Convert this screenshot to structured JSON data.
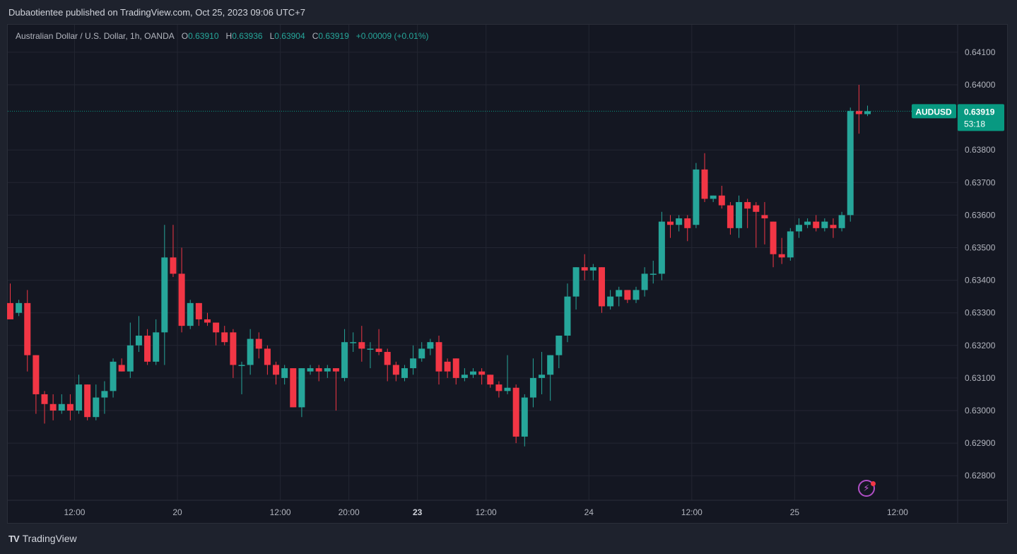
{
  "header": {
    "publisher_line": "Dubaotientee published on TradingView.com, Oct 25, 2023 09:06 UTC+7"
  },
  "legend": {
    "symbol_desc": "Australian Dollar / U.S. Dollar, 1h, OANDA",
    "o_label": "O",
    "o_value": "0.63910",
    "h_label": "H",
    "h_value": "0.63936",
    "l_label": "L",
    "l_value": "0.63904",
    "c_label": "C",
    "c_value": "0.63919",
    "change": "+0.00009 (+0.01%)"
  },
  "price_tag": {
    "symbol": "AUDUSD",
    "price": "0.63919",
    "countdown": "53:18"
  },
  "footer": {
    "brand_mark": "TV",
    "brand": "TradingView"
  },
  "colors": {
    "up": "#26a69a",
    "down": "#f23645",
    "background": "#141722",
    "grid": "#232632",
    "accent": "#089981"
  },
  "chart_data": {
    "type": "candlestick",
    "symbol": "AUDUSD",
    "interval": "1h",
    "title": "Australian Dollar / U.S. Dollar, 1h, OANDA",
    "ylim": [
      0.6272,
      0.6414
    ],
    "y_ticks": [
      "0.64100",
      "0.64000",
      "0.63800",
      "0.63700",
      "0.63600",
      "0.63500",
      "0.63400",
      "0.63300",
      "0.63200",
      "0.63100",
      "0.63000",
      "0.62900",
      "0.62800"
    ],
    "x_ticks": [
      {
        "label": "12:00",
        "bar": 7.5,
        "bold": false
      },
      {
        "label": "20",
        "bar": 19.5,
        "bold": false
      },
      {
        "label": "12:00",
        "bar": 31.5,
        "bold": false
      },
      {
        "label": "20:00",
        "bar": 39.5,
        "bold": false
      },
      {
        "label": "23",
        "bar": 47.5,
        "bold": true
      },
      {
        "label": "12:00",
        "bar": 55.5,
        "bold": false
      },
      {
        "label": "24",
        "bar": 67.5,
        "bold": false
      },
      {
        "label": "12:00",
        "bar": 79.5,
        "bold": false
      },
      {
        "label": "25",
        "bar": 91.5,
        "bold": false
      },
      {
        "label": "12:00",
        "bar": 103.5,
        "bold": false
      }
    ],
    "last_price": 0.63919,
    "candles": [
      {
        "o": 0.6333,
        "h": 0.6339,
        "l": 0.6329,
        "c": 0.6328
      },
      {
        "o": 0.633,
        "h": 0.6334,
        "l": 0.6329,
        "c": 0.6333
      },
      {
        "o": 0.6333,
        "h": 0.6337,
        "l": 0.6312,
        "c": 0.6317
      },
      {
        "o": 0.6317,
        "h": 0.6317,
        "l": 0.6299,
        "c": 0.6305
      },
      {
        "o": 0.6305,
        "h": 0.6306,
        "l": 0.6296,
        "c": 0.6302
      },
      {
        "o": 0.6302,
        "h": 0.6305,
        "l": 0.6297,
        "c": 0.63
      },
      {
        "o": 0.63,
        "h": 0.6305,
        "l": 0.6299,
        "c": 0.6302
      },
      {
        "o": 0.6302,
        "h": 0.6305,
        "l": 0.6297,
        "c": 0.63
      },
      {
        "o": 0.63,
        "h": 0.6311,
        "l": 0.6299,
        "c": 0.6308
      },
      {
        "o": 0.6308,
        "h": 0.6308,
        "l": 0.6297,
        "c": 0.6298
      },
      {
        "o": 0.6298,
        "h": 0.6308,
        "l": 0.6297,
        "c": 0.6304
      },
      {
        "o": 0.6304,
        "h": 0.6309,
        "l": 0.6299,
        "c": 0.6306
      },
      {
        "o": 0.6306,
        "h": 0.6316,
        "l": 0.6304,
        "c": 0.6315
      },
      {
        "o": 0.6314,
        "h": 0.6316,
        "l": 0.6312,
        "c": 0.6312
      },
      {
        "o": 0.6312,
        "h": 0.6327,
        "l": 0.631,
        "c": 0.632
      },
      {
        "o": 0.632,
        "h": 0.6329,
        "l": 0.6318,
        "c": 0.6323
      },
      {
        "o": 0.6323,
        "h": 0.6325,
        "l": 0.6314,
        "c": 0.6315
      },
      {
        "o": 0.6315,
        "h": 0.6328,
        "l": 0.6314,
        "c": 0.6324
      },
      {
        "o": 0.6324,
        "h": 0.6357,
        "l": 0.6314,
        "c": 0.6347
      },
      {
        "o": 0.6347,
        "h": 0.6357,
        "l": 0.6341,
        "c": 0.6342
      },
      {
        "o": 0.6342,
        "h": 0.635,
        "l": 0.6324,
        "c": 0.6326
      },
      {
        "o": 0.6326,
        "h": 0.6334,
        "l": 0.6325,
        "c": 0.6333
      },
      {
        "o": 0.6333,
        "h": 0.6333,
        "l": 0.6326,
        "c": 0.6328
      },
      {
        "o": 0.6328,
        "h": 0.633,
        "l": 0.6326,
        "c": 0.6327
      },
      {
        "o": 0.6327,
        "h": 0.6327,
        "l": 0.632,
        "c": 0.6324
      },
      {
        "o": 0.6324,
        "h": 0.6326,
        "l": 0.632,
        "c": 0.6321
      },
      {
        "o": 0.6324,
        "h": 0.6325,
        "l": 0.631,
        "c": 0.6314
      },
      {
        "o": 0.6314,
        "h": 0.6315,
        "l": 0.6305,
        "c": 0.6314
      },
      {
        "o": 0.6314,
        "h": 0.6325,
        "l": 0.6311,
        "c": 0.6322
      },
      {
        "o": 0.6322,
        "h": 0.6324,
        "l": 0.6316,
        "c": 0.6319
      },
      {
        "o": 0.6319,
        "h": 0.632,
        "l": 0.6311,
        "c": 0.6314
      },
      {
        "o": 0.6314,
        "h": 0.6315,
        "l": 0.6308,
        "c": 0.6311
      },
      {
        "o": 0.631,
        "h": 0.6314,
        "l": 0.6308,
        "c": 0.6313
      },
      {
        "o": 0.6313,
        "h": 0.6313,
        "l": 0.6301,
        "c": 0.6301
      },
      {
        "o": 0.6301,
        "h": 0.6313,
        "l": 0.6298,
        "c": 0.6313
      },
      {
        "o": 0.6312,
        "h": 0.6314,
        "l": 0.6311,
        "c": 0.6313
      },
      {
        "o": 0.6313,
        "h": 0.6314,
        "l": 0.6309,
        "c": 0.6312
      },
      {
        "o": 0.6312,
        "h": 0.6314,
        "l": 0.631,
        "c": 0.6313
      },
      {
        "o": 0.6313,
        "h": 0.6313,
        "l": 0.63,
        "c": 0.6312
      },
      {
        "o": 0.631,
        "h": 0.6325,
        "l": 0.6309,
        "c": 0.6321
      },
      {
        "o": 0.6321,
        "h": 0.6324,
        "l": 0.6318,
        "c": 0.6321
      },
      {
        "o": 0.6321,
        "h": 0.6326,
        "l": 0.6315,
        "c": 0.6319
      },
      {
        "o": 0.6319,
        "h": 0.6321,
        "l": 0.6313,
        "c": 0.6319
      },
      {
        "o": 0.6319,
        "h": 0.6325,
        "l": 0.6317,
        "c": 0.6318
      },
      {
        "o": 0.6318,
        "h": 0.6319,
        "l": 0.6309,
        "c": 0.6314
      },
      {
        "o": 0.6314,
        "h": 0.6315,
        "l": 0.6309,
        "c": 0.6311
      },
      {
        "o": 0.631,
        "h": 0.6314,
        "l": 0.6309,
        "c": 0.6313
      },
      {
        "o": 0.6313,
        "h": 0.632,
        "l": 0.6311,
        "c": 0.6316
      },
      {
        "o": 0.6316,
        "h": 0.6321,
        "l": 0.6315,
        "c": 0.6319
      },
      {
        "o": 0.6319,
        "h": 0.6322,
        "l": 0.6317,
        "c": 0.6321
      },
      {
        "o": 0.6321,
        "h": 0.6323,
        "l": 0.6308,
        "c": 0.6312
      },
      {
        "o": 0.6315,
        "h": 0.6316,
        "l": 0.631,
        "c": 0.6312
      },
      {
        "o": 0.6316,
        "h": 0.6316,
        "l": 0.6308,
        "c": 0.631
      },
      {
        "o": 0.631,
        "h": 0.6313,
        "l": 0.6309,
        "c": 0.6311
      },
      {
        "o": 0.6311,
        "h": 0.6313,
        "l": 0.631,
        "c": 0.6312
      },
      {
        "o": 0.6312,
        "h": 0.6313,
        "l": 0.6308,
        "c": 0.6311
      },
      {
        "o": 0.6311,
        "h": 0.6311,
        "l": 0.6307,
        "c": 0.6308
      },
      {
        "o": 0.6308,
        "h": 0.6309,
        "l": 0.6304,
        "c": 0.6306
      },
      {
        "o": 0.6306,
        "h": 0.6317,
        "l": 0.6305,
        "c": 0.6307
      },
      {
        "o": 0.6307,
        "h": 0.6308,
        "l": 0.629,
        "c": 0.6292
      },
      {
        "o": 0.6292,
        "h": 0.6305,
        "l": 0.6289,
        "c": 0.6304
      },
      {
        "o": 0.6304,
        "h": 0.6316,
        "l": 0.6301,
        "c": 0.631
      },
      {
        "o": 0.631,
        "h": 0.6318,
        "l": 0.6305,
        "c": 0.6311
      },
      {
        "o": 0.6311,
        "h": 0.6317,
        "l": 0.6303,
        "c": 0.6317
      },
      {
        "o": 0.6317,
        "h": 0.6322,
        "l": 0.6313,
        "c": 0.6323
      },
      {
        "o": 0.6323,
        "h": 0.6339,
        "l": 0.6321,
        "c": 0.6335
      },
      {
        "o": 0.6335,
        "h": 0.6344,
        "l": 0.6331,
        "c": 0.6344
      },
      {
        "o": 0.6344,
        "h": 0.6348,
        "l": 0.634,
        "c": 0.6343
      },
      {
        "o": 0.6343,
        "h": 0.6345,
        "l": 0.634,
        "c": 0.6344
      },
      {
        "o": 0.6344,
        "h": 0.6344,
        "l": 0.633,
        "c": 0.6332
      },
      {
        "o": 0.6332,
        "h": 0.6337,
        "l": 0.6331,
        "c": 0.6335
      },
      {
        "o": 0.6335,
        "h": 0.6338,
        "l": 0.6332,
        "c": 0.6337
      },
      {
        "o": 0.6337,
        "h": 0.6337,
        "l": 0.6333,
        "c": 0.6334
      },
      {
        "o": 0.6334,
        "h": 0.6338,
        "l": 0.6333,
        "c": 0.6337
      },
      {
        "o": 0.6337,
        "h": 0.6344,
        "l": 0.6335,
        "c": 0.6342
      },
      {
        "o": 0.6342,
        "h": 0.6346,
        "l": 0.6339,
        "c": 0.6342
      },
      {
        "o": 0.6342,
        "h": 0.6361,
        "l": 0.634,
        "c": 0.6358
      },
      {
        "o": 0.6358,
        "h": 0.636,
        "l": 0.6353,
        "c": 0.6357
      },
      {
        "o": 0.6357,
        "h": 0.636,
        "l": 0.6355,
        "c": 0.6359
      },
      {
        "o": 0.6359,
        "h": 0.636,
        "l": 0.6352,
        "c": 0.6356
      },
      {
        "o": 0.6357,
        "h": 0.6376,
        "l": 0.6356,
        "c": 0.6374
      },
      {
        "o": 0.6374,
        "h": 0.6379,
        "l": 0.6364,
        "c": 0.6365
      },
      {
        "o": 0.6365,
        "h": 0.6366,
        "l": 0.6364,
        "c": 0.6366
      },
      {
        "o": 0.6366,
        "h": 0.6369,
        "l": 0.6362,
        "c": 0.6363
      },
      {
        "o": 0.6363,
        "h": 0.6364,
        "l": 0.6354,
        "c": 0.6356
      },
      {
        "o": 0.6356,
        "h": 0.6366,
        "l": 0.6353,
        "c": 0.6364
      },
      {
        "o": 0.6364,
        "h": 0.6365,
        "l": 0.6356,
        "c": 0.6362
      },
      {
        "o": 0.6363,
        "h": 0.6364,
        "l": 0.635,
        "c": 0.6361
      },
      {
        "o": 0.636,
        "h": 0.6364,
        "l": 0.6351,
        "c": 0.6359
      },
      {
        "o": 0.6358,
        "h": 0.6358,
        "l": 0.6344,
        "c": 0.6348
      },
      {
        "o": 0.6348,
        "h": 0.6353,
        "l": 0.6345,
        "c": 0.6347
      },
      {
        "o": 0.6347,
        "h": 0.6356,
        "l": 0.6346,
        "c": 0.6355
      },
      {
        "o": 0.6355,
        "h": 0.6359,
        "l": 0.6353,
        "c": 0.6357
      },
      {
        "o": 0.6357,
        "h": 0.6359,
        "l": 0.6356,
        "c": 0.6358
      },
      {
        "o": 0.6358,
        "h": 0.636,
        "l": 0.6355,
        "c": 0.6356
      },
      {
        "o": 0.6356,
        "h": 0.6359,
        "l": 0.6355,
        "c": 0.6358
      },
      {
        "o": 0.6357,
        "h": 0.6359,
        "l": 0.6353,
        "c": 0.6356
      },
      {
        "o": 0.6356,
        "h": 0.6361,
        "l": 0.6355,
        "c": 0.636
      },
      {
        "o": 0.636,
        "h": 0.6393,
        "l": 0.6358,
        "c": 0.6392
      },
      {
        "o": 0.6392,
        "h": 0.64,
        "l": 0.6385,
        "c": 0.6391
      },
      {
        "o": 0.6391,
        "h": 0.63936,
        "l": 0.63904,
        "c": 0.63919
      }
    ]
  }
}
